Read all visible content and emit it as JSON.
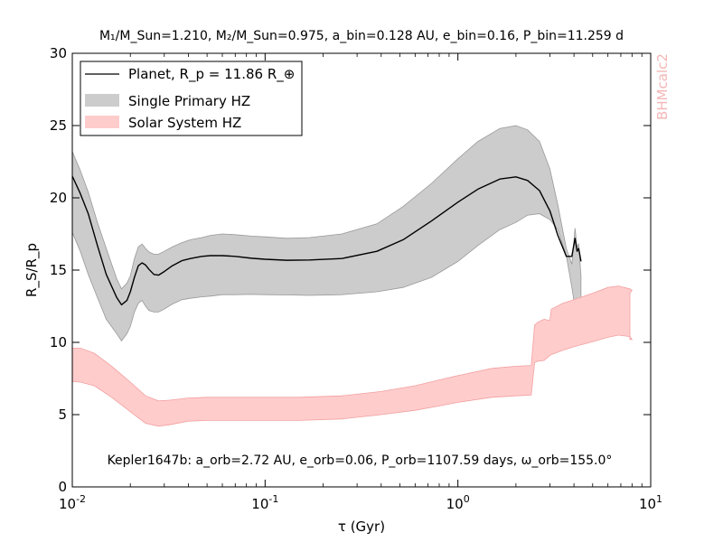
{
  "chart_data": {
    "type": "area",
    "title": "M₁/M_Sun=1.210, M₂/M_Sun=0.975, a_bin=0.128 AU, e_bin=0.16, P_bin=11.259 d",
    "xlabel": "τ (Gyr)",
    "ylabel": "R_S/R_p",
    "x_scale": "log",
    "xlim": [
      0.01,
      10
    ],
    "ylim": [
      0,
      30
    ],
    "x_ticks": [
      0.01,
      0.1,
      1,
      10
    ],
    "x_tick_labels": [
      "10-2",
      "10-1",
      "100",
      "101"
    ],
    "y_ticks": [
      0,
      5,
      10,
      15,
      20,
      25,
      30
    ],
    "watermark": "BHMcalc2",
    "annotation": "Kepler1647b: a_orb=2.72 AU, e_orb=0.06, P_orb=1107.59 days, ω_orb=155.0°",
    "legend": {
      "placement": "top-left",
      "entries": [
        {
          "label": "Planet, R_p = 11.86 R_⊕"
        },
        {
          "label": "Single Primary HZ"
        },
        {
          "label": "Solar System HZ"
        }
      ]
    },
    "colors": {
      "planet_line": "#000000",
      "single_primary_fill": "#cccccc",
      "single_primary_edge": "#999999",
      "solar_fill": "#ffcccc",
      "solar_edge": "#f2a0a0",
      "watermark": "#f4b6b6"
    },
    "series": [
      {
        "name": "Planet, R_p = 11.86 R_⊕",
        "kind": "line",
        "x": [
          0.01,
          0.011,
          0.0121,
          0.0135,
          0.015,
          0.017,
          0.018,
          0.0192,
          0.02,
          0.021,
          0.022,
          0.023,
          0.024,
          0.025,
          0.0265,
          0.028,
          0.03,
          0.033,
          0.037,
          0.041,
          0.047,
          0.052,
          0.06,
          0.07,
          0.085,
          0.1,
          0.13,
          0.17,
          0.25,
          0.38,
          0.52,
          0.73,
          1.0,
          1.27,
          1.65,
          2.0,
          2.3,
          2.65,
          3.0,
          3.3,
          3.65,
          3.9,
          4.05,
          4.15,
          4.23,
          4.35
        ],
        "y": [
          21.5,
          20.3,
          18.9,
          16.7,
          14.7,
          13.1,
          12.6,
          12.9,
          13.5,
          14.5,
          15.3,
          15.5,
          15.35,
          15.05,
          14.7,
          14.65,
          14.9,
          15.3,
          15.65,
          15.8,
          15.95,
          16.0,
          16.0,
          15.95,
          15.82,
          15.75,
          15.68,
          15.7,
          15.8,
          16.3,
          17.1,
          18.4,
          19.7,
          20.6,
          21.3,
          21.45,
          21.2,
          20.5,
          19.1,
          17.4,
          15.95,
          15.95,
          17.2,
          16.3,
          16.5,
          15.6
        ]
      },
      {
        "name": "Single Primary HZ",
        "kind": "band",
        "x": [
          0.01,
          0.011,
          0.0121,
          0.0135,
          0.015,
          0.017,
          0.018,
          0.0192,
          0.02,
          0.021,
          0.022,
          0.023,
          0.024,
          0.025,
          0.0265,
          0.028,
          0.03,
          0.033,
          0.037,
          0.041,
          0.047,
          0.052,
          0.06,
          0.07,
          0.085,
          0.1,
          0.13,
          0.17,
          0.25,
          0.38,
          0.52,
          0.73,
          1.0,
          1.27,
          1.65,
          2.0,
          2.3,
          2.65,
          3.0,
          3.3,
          3.65,
          3.9,
          4.05,
          4.15,
          4.23,
          4.35
        ],
        "upper": [
          23.2,
          21.9,
          20.4,
          18.3,
          16.5,
          14.4,
          13.7,
          14.1,
          14.6,
          15.8,
          16.6,
          16.8,
          16.5,
          16.25,
          16.1,
          16.1,
          16.3,
          16.6,
          16.9,
          17.1,
          17.25,
          17.4,
          17.5,
          17.45,
          17.35,
          17.3,
          17.2,
          17.25,
          17.5,
          18.2,
          19.4,
          21.0,
          22.7,
          23.9,
          24.8,
          25.0,
          24.7,
          23.9,
          22.0,
          19.5,
          16.5,
          15.4,
          17.9,
          16.6,
          16.8,
          14.6
        ],
        "lower": [
          17.6,
          16.3,
          14.7,
          13.1,
          11.6,
          10.6,
          10.1,
          10.6,
          11.1,
          12.1,
          12.7,
          12.9,
          12.5,
          12.2,
          12.1,
          12.1,
          12.3,
          12.65,
          12.95,
          13.05,
          13.15,
          13.2,
          13.3,
          13.3,
          13.32,
          13.3,
          13.28,
          13.25,
          13.3,
          13.5,
          13.8,
          14.5,
          15.6,
          16.7,
          17.8,
          18.3,
          18.8,
          18.9,
          18.5,
          17.8,
          16.0,
          13.8,
          12.4,
          12.2,
          12.0,
          11.8
        ]
      },
      {
        "name": "Solar System HZ",
        "kind": "band",
        "x": [
          0.01,
          0.011,
          0.013,
          0.016,
          0.02,
          0.024,
          0.028,
          0.032,
          0.04,
          0.05,
          0.07,
          0.1,
          0.15,
          0.25,
          0.4,
          0.6,
          0.8,
          1.0,
          1.5,
          2.0,
          2.4,
          2.5,
          2.6,
          2.8,
          3.0,
          3.05,
          3.5,
          4.0,
          5.0,
          6.0,
          6.8,
          7.8,
          8.0,
          7.8
        ],
        "upper": [
          9.6,
          9.6,
          9.25,
          8.35,
          7.25,
          6.3,
          5.95,
          6.0,
          6.15,
          6.2,
          6.2,
          6.2,
          6.2,
          6.3,
          6.6,
          7.0,
          7.4,
          7.7,
          8.2,
          8.35,
          8.4,
          11.2,
          11.4,
          11.6,
          11.5,
          12.3,
          12.7,
          12.95,
          13.4,
          13.8,
          13.9,
          13.7,
          13.6,
          13.4
        ],
        "lower": [
          7.3,
          7.25,
          7.0,
          6.2,
          5.2,
          4.4,
          4.2,
          4.3,
          4.55,
          4.6,
          4.6,
          4.6,
          4.6,
          4.7,
          5.0,
          5.3,
          5.6,
          5.85,
          6.2,
          6.3,
          6.35,
          8.6,
          8.7,
          8.75,
          9.1,
          9.15,
          9.45,
          9.7,
          10.05,
          10.35,
          10.5,
          10.4,
          10.2,
          10.2
        ]
      }
    ]
  }
}
